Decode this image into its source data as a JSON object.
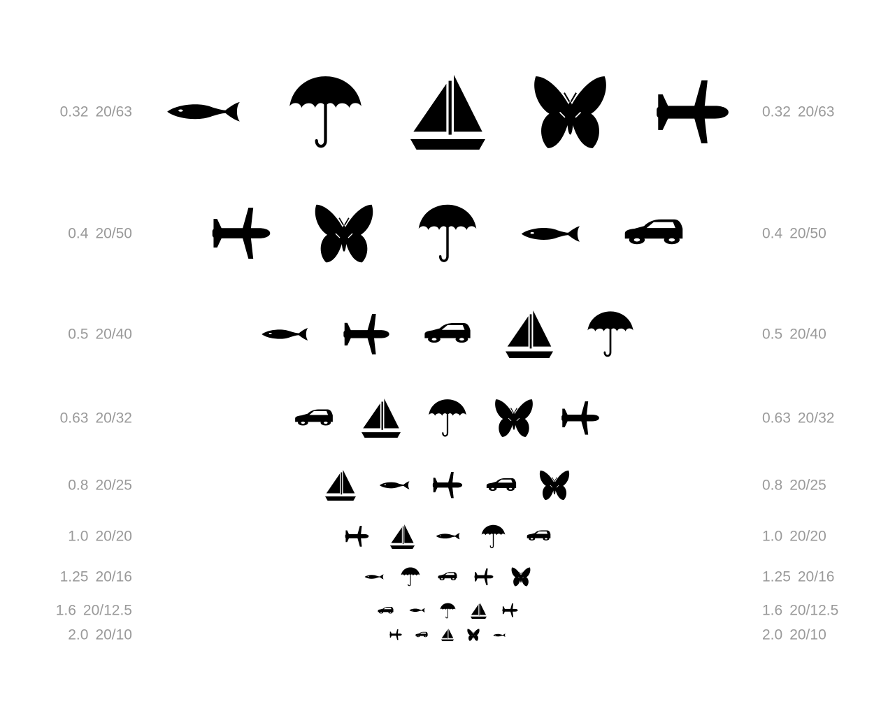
{
  "chart": {
    "rows": [
      {
        "decimal": "0.32",
        "snellen": "20/63",
        "symbols": [
          "fish",
          "umbrella",
          "boat",
          "butterfly",
          "plane"
        ]
      },
      {
        "decimal": "0.4",
        "snellen": "20/50",
        "symbols": [
          "plane",
          "butterfly",
          "umbrella",
          "fish",
          "car"
        ]
      },
      {
        "decimal": "0.5",
        "snellen": "20/40",
        "symbols": [
          "fish",
          "plane",
          "car",
          "boat",
          "umbrella"
        ]
      },
      {
        "decimal": "0.63",
        "snellen": "20/32",
        "symbols": [
          "car",
          "boat",
          "umbrella",
          "butterfly",
          "plane"
        ]
      },
      {
        "decimal": "0.8",
        "snellen": "20/25",
        "symbols": [
          "boat",
          "fish",
          "plane",
          "car",
          "butterfly"
        ]
      },
      {
        "decimal": "1.0",
        "snellen": "20/20",
        "symbols": [
          "plane",
          "boat",
          "fish",
          "umbrella",
          "car"
        ]
      },
      {
        "decimal": "1.25",
        "snellen": "20/16",
        "symbols": [
          "fish",
          "umbrella",
          "car",
          "plane",
          "butterfly"
        ]
      },
      {
        "decimal": "1.6",
        "snellen": "20/12.5",
        "symbols": [
          "car",
          "fish",
          "umbrella",
          "boat",
          "plane"
        ]
      },
      {
        "decimal": "2.0",
        "snellen": "20/10",
        "symbols": [
          "plane",
          "car",
          "boat",
          "butterfly",
          "fish"
        ]
      }
    ]
  },
  "colors": {
    "label": "#9a9a9a",
    "symbol": "#000000",
    "background": "#ffffff"
  },
  "icons": {
    "fish": "fish-icon",
    "umbrella": "umbrella-icon",
    "boat": "sailboat-icon",
    "butterfly": "butterfly-icon",
    "plane": "airplane-icon",
    "car": "car-icon"
  }
}
